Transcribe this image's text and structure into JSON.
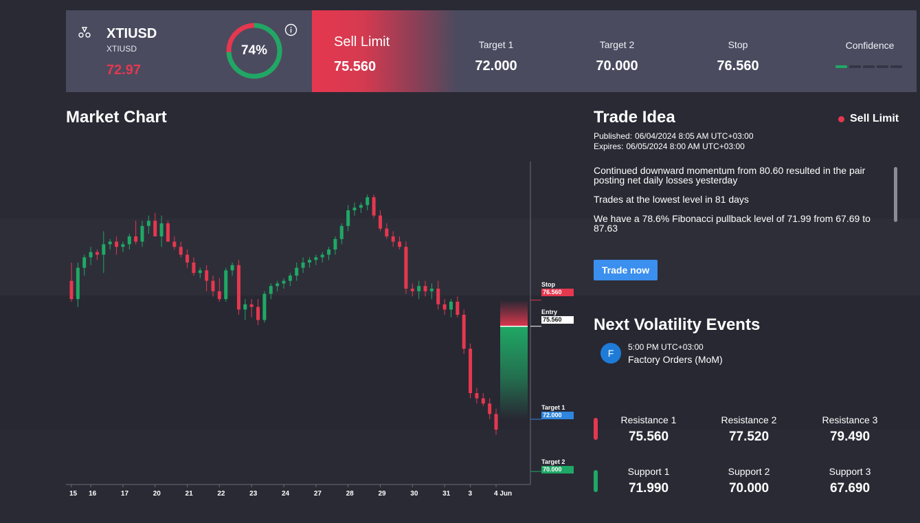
{
  "header": {
    "symbol": "XTIUSD",
    "symbol_sub": "XTIUSD",
    "price": "72.97",
    "confidence_gauge": {
      "label": "74%",
      "value": 0.74
    },
    "order": {
      "type": "Sell Limit",
      "price": "75.560"
    },
    "metrics": [
      {
        "label": "Target 1",
        "value": "72.000"
      },
      {
        "label": "Target 2",
        "value": "70.000"
      },
      {
        "label": "Stop",
        "value": "76.560"
      }
    ],
    "confidence": {
      "label": "Confidence",
      "level": 1,
      "max": 5
    }
  },
  "market_chart": {
    "title": "Market Chart",
    "x_labels": [
      "15",
      "16",
      "17",
      "20",
      "21",
      "22",
      "23",
      "24",
      "27",
      "28",
      "29",
      "30",
      "31",
      "3",
      "4 Jun"
    ],
    "markers": {
      "stop": {
        "label": "Stop",
        "value": "76.560"
      },
      "entry": {
        "label": "Entry",
        "value": "75.560"
      },
      "target1": {
        "label": "Target 1",
        "value": "72.000"
      },
      "target2": {
        "label": "Target 2",
        "value": "70.000"
      }
    },
    "colors": {
      "up": "#1fa865",
      "down": "#e5384f",
      "target1": "#2f86de"
    }
  },
  "chart_data": {
    "type": "candlestick",
    "x": [
      "15",
      "16",
      "17",
      "20",
      "21",
      "22",
      "23",
      "24",
      "27",
      "28",
      "29",
      "30",
      "31",
      "3",
      "4 Jun"
    ],
    "ohlc": [
      [
        77.3,
        78.0,
        76.5,
        76.6
      ],
      [
        76.6,
        78.0,
        76.3,
        77.8
      ],
      [
        77.8,
        78.3,
        77.5,
        78.2
      ],
      [
        78.2,
        78.6,
        77.9,
        78.4
      ],
      [
        78.4,
        78.5,
        78.1,
        78.3
      ],
      [
        78.3,
        79.2,
        77.6,
        78.7
      ],
      [
        78.7,
        78.9,
        78.5,
        78.8
      ],
      [
        78.8,
        79.0,
        78.3,
        78.6
      ],
      [
        78.6,
        78.8,
        78.4,
        78.7
      ],
      [
        78.7,
        79.1,
        78.5,
        79.0
      ],
      [
        79.0,
        79.6,
        78.7,
        78.8
      ],
      [
        78.8,
        79.6,
        78.6,
        79.4
      ],
      [
        79.4,
        79.8,
        79.1,
        79.6
      ],
      [
        79.6,
        79.9,
        79.0,
        79.0
      ],
      [
        79.0,
        79.8,
        78.6,
        79.5
      ],
      [
        79.5,
        79.6,
        78.8,
        78.8
      ],
      [
        78.8,
        79.0,
        78.5,
        78.6
      ],
      [
        78.6,
        78.8,
        78.2,
        78.3
      ],
      [
        78.3,
        78.5,
        77.8,
        78.0
      ],
      [
        78.0,
        78.2,
        77.5,
        77.6
      ],
      [
        77.6,
        77.8,
        77.4,
        77.7
      ],
      [
        77.7,
        77.9,
        76.9,
        77.3
      ],
      [
        77.3,
        77.5,
        76.7,
        76.9
      ],
      [
        76.9,
        77.4,
        76.5,
        76.6
      ],
      [
        76.6,
        77.8,
        76.5,
        77.7
      ],
      [
        77.7,
        78.0,
        77.5,
        77.9
      ],
      [
        77.9,
        78.1,
        76.0,
        76.2
      ],
      [
        76.2,
        76.6,
        75.8,
        76.4
      ],
      [
        76.4,
        76.6,
        75.9,
        76.3
      ],
      [
        76.3,
        76.6,
        75.6,
        75.8
      ],
      [
        75.8,
        76.9,
        75.7,
        76.8
      ],
      [
        76.8,
        77.2,
        76.6,
        77.1
      ],
      [
        77.1,
        77.3,
        76.9,
        77.2
      ],
      [
        77.2,
        77.4,
        77.0,
        77.3
      ],
      [
        77.3,
        77.6,
        77.1,
        77.5
      ],
      [
        77.5,
        78.0,
        77.3,
        77.8
      ],
      [
        77.8,
        78.2,
        77.6,
        78.0
      ],
      [
        78.0,
        78.2,
        77.8,
        78.1
      ],
      [
        78.1,
        78.3,
        77.9,
        78.2
      ],
      [
        78.2,
        78.4,
        78.0,
        78.3
      ],
      [
        78.3,
        78.6,
        78.1,
        78.5
      ],
      [
        78.5,
        79.0,
        78.3,
        78.9
      ],
      [
        78.9,
        79.5,
        78.7,
        79.4
      ],
      [
        79.4,
        80.2,
        79.2,
        80.0
      ],
      [
        80.0,
        80.3,
        79.8,
        80.1
      ],
      [
        80.1,
        80.3,
        79.9,
        80.2
      ],
      [
        80.2,
        80.6,
        80.0,
        80.5
      ],
      [
        80.5,
        80.6,
        79.7,
        79.8
      ],
      [
        79.8,
        80.0,
        79.2,
        79.3
      ],
      [
        79.3,
        79.5,
        78.9,
        79.0
      ],
      [
        79.0,
        79.2,
        78.6,
        78.8
      ],
      [
        78.8,
        79.0,
        78.5,
        78.6
      ],
      [
        78.6,
        78.8,
        76.8,
        77.0
      ],
      [
        77.0,
        77.2,
        76.7,
        76.9
      ],
      [
        76.9,
        77.3,
        76.6,
        77.1
      ],
      [
        77.1,
        77.3,
        76.7,
        76.9
      ],
      [
        76.9,
        77.2,
        76.6,
        77.0
      ],
      [
        77.0,
        77.3,
        76.2,
        76.4
      ],
      [
        76.4,
        76.6,
        76.0,
        76.2
      ],
      [
        76.2,
        76.6,
        75.9,
        76.5
      ],
      [
        76.5,
        76.7,
        75.9,
        76.0
      ],
      [
        76.0,
        76.2,
        74.5,
        74.7
      ],
      [
        74.7,
        74.9,
        72.8,
        73.0
      ],
      [
        73.0,
        73.2,
        72.6,
        72.8
      ],
      [
        72.8,
        73.0,
        72.5,
        72.6
      ],
      [
        72.6,
        72.8,
        72.0,
        72.2
      ],
      [
        72.2,
        72.4,
        71.4,
        71.6
      ]
    ],
    "levels": {
      "stop": 76.56,
      "entry": 75.56,
      "target1": 72.0,
      "target2": 70.0
    },
    "xlabel": "",
    "ylabel": "",
    "ylim": [
      69.5,
      82.0
    ],
    "grid": false
  },
  "trade_idea": {
    "title": "Trade Idea",
    "badge": "Sell Limit",
    "published_label": "Published:",
    "published": "06/04/2024 8:05 AM UTC+03:00",
    "expires_label": "Expires:",
    "expires": "06/05/2024 8:00 AM UTC+03:00",
    "paragraphs": [
      "Continued downward momentum from 80.60 resulted in the pair posting net daily losses yesterday",
      "Trades at the lowest level in 81 days",
      "We have a 78.6% Fibonacci pullback level of 71.99 from 67.69 to 87.63"
    ],
    "button": "Trade now"
  },
  "volatility": {
    "title": "Next Volatility Events",
    "events": [
      {
        "icon_letter": "F",
        "time": "5:00 PM UTC+03:00",
        "name": "Factory Orders (MoM)"
      }
    ]
  },
  "levels": {
    "resistance": [
      {
        "label": "Resistance 1",
        "value": "75.560"
      },
      {
        "label": "Resistance 2",
        "value": "77.520"
      },
      {
        "label": "Resistance 3",
        "value": "79.490"
      }
    ],
    "support": [
      {
        "label": "Support 1",
        "value": "71.990"
      },
      {
        "label": "Support 2",
        "value": "70.000"
      },
      {
        "label": "Support 3",
        "value": "67.690"
      }
    ]
  }
}
